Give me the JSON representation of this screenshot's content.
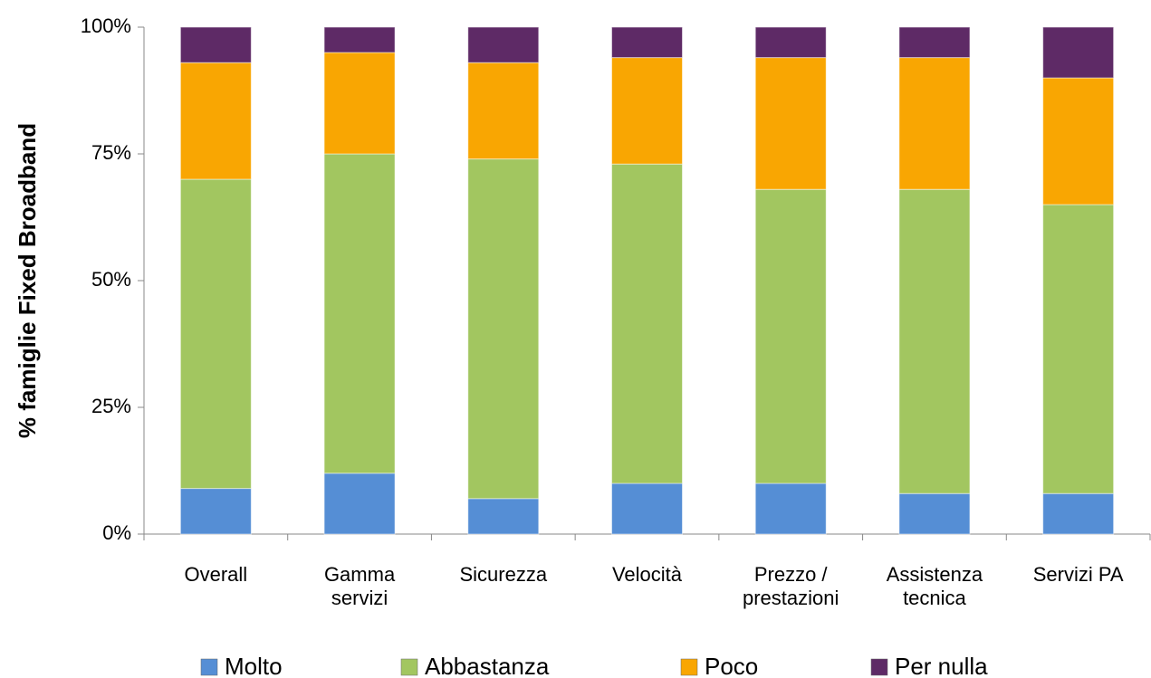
{
  "chart_data": {
    "type": "stacked_bar",
    "y_label": "% famiglie Fixed Broadband",
    "categories": [
      "Overall",
      "Gamma servizi",
      "Sicurezza",
      "Velocità",
      "Prezzo / prestazioni",
      "Assistenza tecnica",
      "Servizi PA"
    ],
    "series": [
      {
        "name": "Molto",
        "color": "#558ed5",
        "values": [
          9,
          12,
          7,
          10,
          10,
          8,
          8
        ]
      },
      {
        "name": "Abbastanza",
        "color": "#a2c660",
        "values": [
          61,
          63,
          67,
          63,
          58,
          60,
          57
        ]
      },
      {
        "name": "Poco",
        "color": "#f9a602",
        "values": [
          23,
          20,
          19,
          21,
          26,
          26,
          25
        ]
      },
      {
        "name": "Per nulla",
        "color": "#5e2a66",
        "values": [
          7,
          5,
          7,
          6,
          6,
          6,
          10
        ]
      }
    ],
    "ylim": [
      0,
      100
    ],
    "yticks": [
      {
        "value": 0,
        "label": "0%"
      },
      {
        "value": 25,
        "label": "25%"
      },
      {
        "value": 50,
        "label": "50%"
      },
      {
        "value": 75,
        "label": "75%"
      },
      {
        "value": 100,
        "label": "100%"
      }
    ],
    "grid": false,
    "legend": "bottom"
  }
}
